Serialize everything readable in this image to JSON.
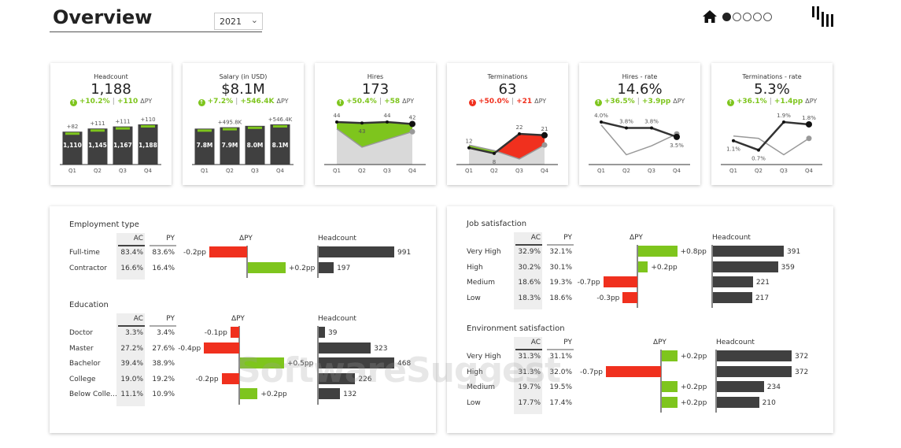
{
  "header": {
    "title": "Overview",
    "year": "2021",
    "nav_pages": 5,
    "active_page": 1
  },
  "colors": {
    "green": "#7ec51d",
    "red": "#f0301e",
    "dark": "#404040",
    "gray": "#999999",
    "light": "#d9d9d9"
  },
  "cards": [
    {
      "title": "Headcount",
      "value": "1,188",
      "delta_pct": "+10.2%",
      "delta_abs": "+110",
      "delta_label": "ΔPY",
      "trend": "up",
      "good": true,
      "type": "bar",
      "quarters": [
        "Q1",
        "Q2",
        "Q3",
        "Q4"
      ],
      "values": [
        1110,
        1145,
        1167,
        1188
      ],
      "labels": [
        "1,110",
        "1,145",
        "1,167",
        "1,188"
      ],
      "deltas": [
        "+82",
        "+111",
        "+111",
        "+110"
      ]
    },
    {
      "title": "Salary (in USD)",
      "value": "$8.1M",
      "delta_pct": "+7.2%",
      "delta_abs": "+546.4K",
      "delta_label": "ΔPY",
      "trend": "up",
      "good": true,
      "type": "bar",
      "quarters": [
        "Q1",
        "Q2",
        "Q3",
        "Q4"
      ],
      "values": [
        7.8,
        7.9,
        8.0,
        8.1
      ],
      "labels": [
        "7.8M",
        "7.9M",
        "8.0M",
        "8.1M"
      ],
      "deltas": [
        "",
        "+495.8K",
        "",
        "+546.4K"
      ]
    },
    {
      "title": "Hires",
      "value": "173",
      "delta_pct": "+50.4%",
      "delta_abs": "+58",
      "delta_label": "ΔPY",
      "trend": "up",
      "good": true,
      "type": "area",
      "quarters": [
        "Q1",
        "Q2",
        "Q3",
        "Q4"
      ],
      "ac": [
        44,
        43,
        44,
        42
      ],
      "py": [
        37,
        18,
        26,
        34
      ],
      "labels": [
        "44",
        "43",
        "44",
        "42"
      ]
    },
    {
      "title": "Terminations",
      "value": "63",
      "delta_pct": "+50.0%",
      "delta_abs": "+21",
      "delta_label": "ΔPY",
      "trend": "up",
      "good": false,
      "type": "area",
      "quarters": [
        "Q1",
        "Q2",
        "Q3",
        "Q4"
      ],
      "ac": [
        12,
        8,
        22,
        21
      ],
      "py": [
        14,
        10,
        4,
        14
      ],
      "labels": [
        "12",
        "8",
        "22",
        "21"
      ],
      "invert": true
    },
    {
      "title": "Hires - rate",
      "value": "14.6%",
      "delta_pct": "+36.5%",
      "delta_abs": "+3.9pp",
      "delta_label": "ΔPY",
      "trend": "up",
      "good": true,
      "type": "line",
      "quarters": [
        "Q1",
        "Q2",
        "Q3",
        "Q4"
      ],
      "ac": [
        4.0,
        3.8,
        3.8,
        3.5
      ],
      "py": [
        3.9,
        2.9,
        3.2,
        3.6
      ],
      "labels": [
        "4.0%",
        "3.8%",
        "3.8%",
        "3.5%"
      ]
    },
    {
      "title": "Terminations - rate",
      "value": "5.3%",
      "delta_pct": "+36.1%",
      "delta_abs": "+1.4pp",
      "delta_label": "ΔPY",
      "trend": "up",
      "good": true,
      "type": "line",
      "quarters": [
        "Q1",
        "Q2",
        "Q3",
        "Q4"
      ],
      "ac": [
        1.1,
        0.7,
        1.9,
        1.8
      ],
      "py": [
        1.3,
        1.2,
        0.5,
        1.2
      ],
      "labels": [
        "1.1%",
        "0.7%",
        "1.9%",
        "1.8%"
      ]
    }
  ],
  "columns": {
    "ac": "AC",
    "py": "PY",
    "delta": "ΔPY",
    "headcount": "Headcount"
  },
  "tables": [
    {
      "title": "Employment type",
      "rows": [
        {
          "label": "Full-time",
          "ac": "83.4%",
          "py": "83.6%",
          "delta": -0.2,
          "delta_label": "-0.2pp",
          "headcount": 991
        },
        {
          "label": "Contractor",
          "ac": "16.6%",
          "py": "16.4%",
          "delta": 0.2,
          "delta_label": "+0.2pp",
          "headcount": 197
        }
      ]
    },
    {
      "title": "Education",
      "rows": [
        {
          "label": "Doctor",
          "ac": "3.3%",
          "py": "3.4%",
          "delta": -0.1,
          "delta_label": "-0.1pp",
          "headcount": 39
        },
        {
          "label": "Master",
          "ac": "27.2%",
          "py": "27.6%",
          "delta": -0.4,
          "delta_label": "-0.4pp",
          "headcount": 323
        },
        {
          "label": "Bachelor",
          "ac": "39.4%",
          "py": "38.9%",
          "delta": 0.5,
          "delta_label": "+0.5pp",
          "headcount": 468
        },
        {
          "label": "College",
          "ac": "19.0%",
          "py": "19.2%",
          "delta": -0.2,
          "delta_label": "-0.2pp",
          "headcount": 226
        },
        {
          "label": "Below Colle...",
          "ac": "11.1%",
          "py": "10.9%",
          "delta": 0.2,
          "delta_label": "+0.2pp",
          "headcount": 132
        }
      ]
    },
    {
      "title": "Job satisfaction",
      "rows": [
        {
          "label": "Very High",
          "ac": "32.9%",
          "py": "32.1%",
          "delta": 0.8,
          "delta_label": "+0.8pp",
          "headcount": 391
        },
        {
          "label": "High",
          "ac": "30.2%",
          "py": "30.1%",
          "delta": 0.2,
          "delta_label": "+0.2pp",
          "headcount": 359
        },
        {
          "label": "Medium",
          "ac": "18.6%",
          "py": "19.3%",
          "delta": -0.7,
          "delta_label": "-0.7pp",
          "headcount": 221
        },
        {
          "label": "Low",
          "ac": "18.3%",
          "py": "18.6%",
          "delta": -0.3,
          "delta_label": "-0.3pp",
          "headcount": 217
        }
      ]
    },
    {
      "title": "Environment satisfaction",
      "rows": [
        {
          "label": "Very High",
          "ac": "31.3%",
          "py": "31.1%",
          "delta": 0.2,
          "delta_label": "+0.2pp",
          "headcount": 372
        },
        {
          "label": "High",
          "ac": "31.3%",
          "py": "32.0%",
          "delta": -0.7,
          "delta_label": "-0.7pp",
          "headcount": 372
        },
        {
          "label": "Medium",
          "ac": "19.7%",
          "py": "19.5%",
          "delta": 0.2,
          "delta_label": "+0.2pp",
          "headcount": 234
        },
        {
          "label": "Low",
          "ac": "17.7%",
          "py": "17.4%",
          "delta": 0.2,
          "delta_label": "+0.2pp",
          "headcount": 210
        }
      ]
    }
  ],
  "watermark": "SoftwareSuggest"
}
